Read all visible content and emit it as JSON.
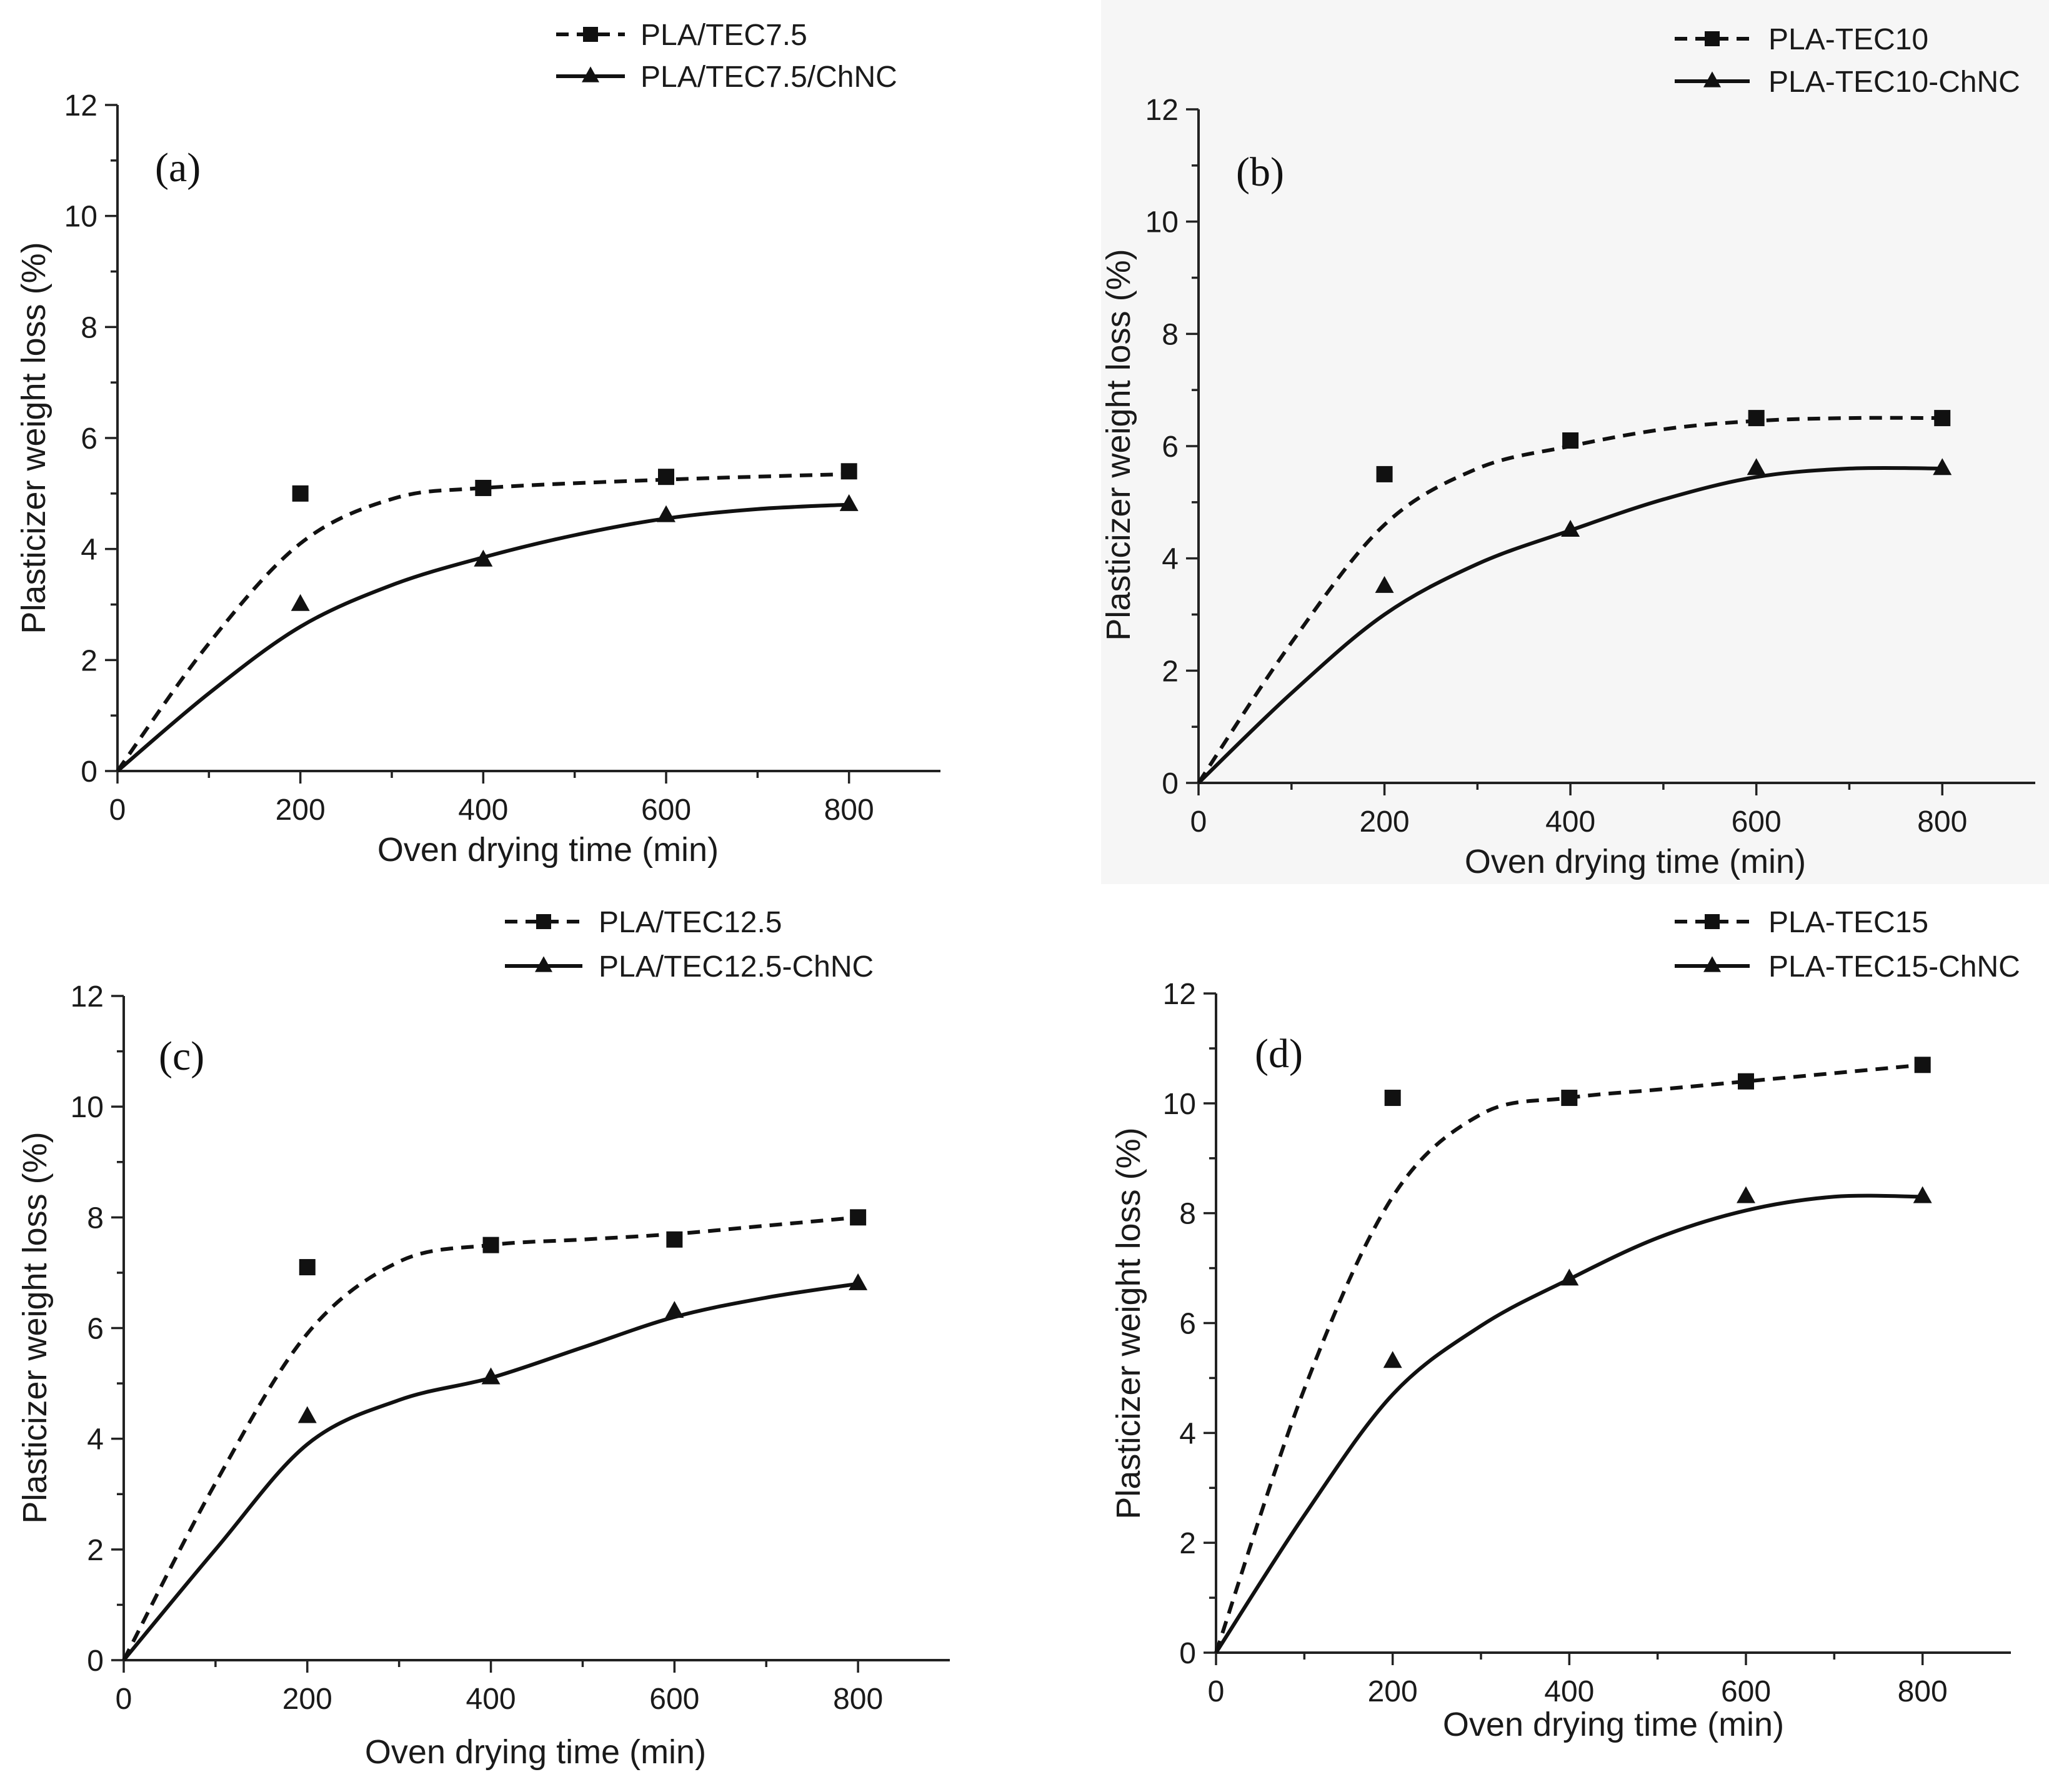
{
  "chart_data": [
    {
      "type": "scatter",
      "panel_label": "(a)",
      "xlabel": "Oven drying time (min)",
      "ylabel": "Plasticizer weight loss (%)",
      "xlim": [
        0,
        900
      ],
      "ylim": [
        0,
        12
      ],
      "xticks": [
        "0",
        "200",
        "400",
        "600",
        "800"
      ],
      "yticks": [
        "0",
        "2",
        "4",
        "6",
        "8",
        "10",
        "12"
      ],
      "legend_position": "top-right",
      "series": [
        {
          "name": "PLA/TEC7.5",
          "marker": "square",
          "line": "dashed fit",
          "x": [
            0,
            200,
            400,
            600,
            800
          ],
          "y": [
            0,
            5.0,
            5.1,
            5.3,
            5.4
          ],
          "fit_x": [
            0,
            100,
            200,
            300,
            400,
            600,
            800
          ],
          "fit_y": [
            0,
            2.3,
            4.1,
            4.9,
            5.1,
            5.25,
            5.35
          ]
        },
        {
          "name": "PLA/TEC7.5/ChNC",
          "marker": "triangle",
          "line": "solid fit",
          "x": [
            0,
            200,
            400,
            600,
            800
          ],
          "y": [
            0,
            3.0,
            3.8,
            4.6,
            4.8
          ],
          "fit_x": [
            0,
            100,
            200,
            300,
            400,
            500,
            600,
            700,
            800
          ],
          "fit_y": [
            0,
            1.4,
            2.6,
            3.35,
            3.85,
            4.25,
            4.55,
            4.72,
            4.8
          ]
        }
      ]
    },
    {
      "type": "scatter",
      "panel_label": "(b)",
      "xlabel": "Oven drying time (min)",
      "ylabel": "Plasticizer weight loss (%)",
      "xlim": [
        0,
        900
      ],
      "ylim": [
        0,
        12
      ],
      "xticks": [
        "0",
        "200",
        "400",
        "600",
        "800"
      ],
      "yticks": [
        "0",
        "2",
        "4",
        "6",
        "8",
        "10",
        "12"
      ],
      "legend_position": "top-right",
      "series": [
        {
          "name": "PLA-TEC10",
          "marker": "square",
          "line": "dashed fit",
          "x": [
            0,
            200,
            400,
            600,
            800
          ],
          "y": [
            0,
            5.5,
            6.1,
            6.5,
            6.5
          ],
          "fit_x": [
            0,
            100,
            200,
            300,
            400,
            500,
            600,
            700,
            800
          ],
          "fit_y": [
            0,
            2.5,
            4.6,
            5.6,
            6.0,
            6.3,
            6.45,
            6.5,
            6.5
          ]
        },
        {
          "name": "PLA-TEC10-ChNC",
          "marker": "triangle",
          "line": "solid fit",
          "x": [
            0,
            200,
            400,
            600,
            800
          ],
          "y": [
            0,
            3.5,
            4.5,
            5.6,
            5.6
          ],
          "fit_x": [
            0,
            100,
            200,
            300,
            400,
            500,
            600,
            700,
            800
          ],
          "fit_y": [
            0,
            1.6,
            3.0,
            3.9,
            4.5,
            5.05,
            5.45,
            5.6,
            5.6
          ]
        }
      ]
    },
    {
      "type": "scatter",
      "panel_label": "(c)",
      "xlabel": "Oven drying time (min)",
      "ylabel": "Plasticizer weight loss (%)",
      "xlim": [
        0,
        900
      ],
      "ylim": [
        0,
        12
      ],
      "xticks": [
        "0",
        "200",
        "400",
        "600",
        "800"
      ],
      "yticks": [
        "0",
        "2",
        "4",
        "6",
        "8",
        "10",
        "12"
      ],
      "legend_position": "top-right",
      "series": [
        {
          "name": "PLA/TEC12.5",
          "marker": "square",
          "line": "dashed fit",
          "x": [
            0,
            200,
            400,
            600,
            800
          ],
          "y": [
            0,
            7.1,
            7.5,
            7.6,
            8.0
          ],
          "fit_x": [
            0,
            100,
            200,
            300,
            400,
            500,
            600,
            700,
            800
          ],
          "fit_y": [
            0,
            3.2,
            5.9,
            7.2,
            7.5,
            7.6,
            7.7,
            7.85,
            8.0
          ]
        },
        {
          "name": "PLA/TEC12.5-ChNC",
          "marker": "triangle",
          "line": "solid fit",
          "x": [
            0,
            200,
            400,
            600,
            800
          ],
          "y": [
            0,
            4.4,
            5.1,
            6.3,
            6.8
          ],
          "fit_x": [
            0,
            100,
            200,
            300,
            400,
            500,
            600,
            700,
            800
          ],
          "fit_y": [
            0,
            2.0,
            3.9,
            4.7,
            5.1,
            5.65,
            6.2,
            6.55,
            6.8
          ]
        }
      ]
    },
    {
      "type": "scatter",
      "panel_label": "(d)",
      "xlabel": "Oven drying time (min)",
      "ylabel": "Plasticizer weight loss (%)",
      "xlim": [
        0,
        900
      ],
      "ylim": [
        0,
        12
      ],
      "xticks": [
        "0",
        "200",
        "400",
        "600",
        "800"
      ],
      "yticks": [
        "0",
        "2",
        "4",
        "6",
        "8",
        "10",
        "12"
      ],
      "legend_position": "top-right",
      "series": [
        {
          "name": "PLA-TEC15",
          "marker": "square",
          "line": "dashed fit",
          "x": [
            0,
            200,
            400,
            600,
            800
          ],
          "y": [
            0,
            10.1,
            10.1,
            10.4,
            10.7
          ],
          "fit_x": [
            0,
            100,
            200,
            300,
            400,
            500,
            600,
            700,
            800
          ],
          "fit_y": [
            0,
            4.8,
            8.3,
            9.8,
            10.1,
            10.25,
            10.4,
            10.55,
            10.7
          ]
        },
        {
          "name": "PLA-TEC15-ChNC",
          "marker": "triangle",
          "line": "solid fit",
          "x": [
            0,
            200,
            400,
            600,
            800
          ],
          "y": [
            0,
            5.3,
            6.8,
            8.3,
            8.3
          ],
          "fit_x": [
            0,
            100,
            200,
            300,
            400,
            500,
            600,
            700,
            800
          ],
          "fit_y": [
            0,
            2.5,
            4.7,
            5.95,
            6.8,
            7.55,
            8.05,
            8.3,
            8.3
          ]
        }
      ]
    }
  ]
}
